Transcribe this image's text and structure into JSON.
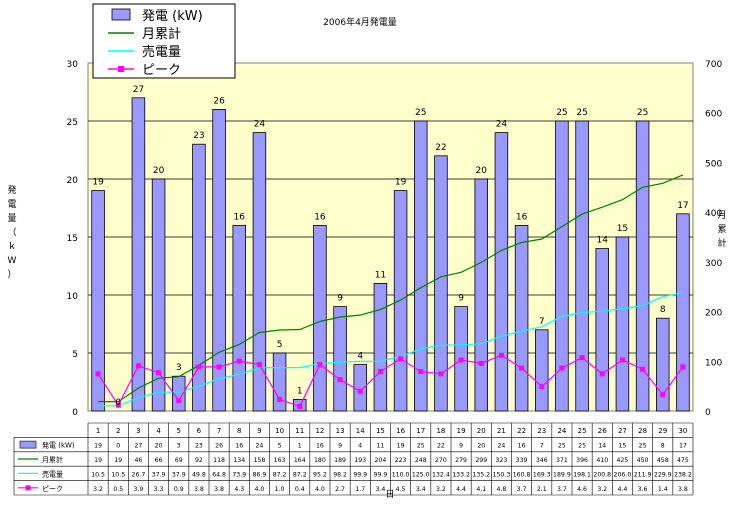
{
  "chart_data": {
    "type": "bar",
    "title": "2006年4月発電量",
    "xlabel": "日",
    "ylabel": "発電量（ｋW）",
    "y2label": "月累計",
    "ylim": [
      0,
      30
    ],
    "y2lim": [
      0,
      700
    ],
    "yticks": [
      "0",
      "5",
      "10",
      "15",
      "20",
      "25",
      "30"
    ],
    "y2ticks": [
      "0",
      "100",
      "200",
      "300",
      "400",
      "500",
      "600",
      "700"
    ],
    "grid": true,
    "legend_position": "top-left",
    "categories": [
      "1",
      "2",
      "3",
      "4",
      "5",
      "6",
      "7",
      "8",
      "9",
      "10",
      "11",
      "12",
      "13",
      "14",
      "15",
      "16",
      "17",
      "18",
      "19",
      "20",
      "21",
      "22",
      "23",
      "24",
      "25",
      "26",
      "27",
      "28",
      "29",
      "30"
    ],
    "series": [
      {
        "name": "発電 (kW)",
        "kind": "bar",
        "axis": "left",
        "color": "#9999ff",
        "values": [
          19,
          0,
          27,
          20,
          3,
          23,
          26,
          16,
          24,
          5,
          1,
          16,
          9,
          4,
          11,
          19,
          25,
          22,
          9,
          20,
          24,
          16,
          7,
          25,
          25,
          14,
          15,
          25,
          8,
          17
        ]
      },
      {
        "name": "月累計",
        "kind": "line",
        "axis": "right",
        "color": "#008000",
        "values": [
          19,
          19,
          46,
          66,
          69,
          92,
          118,
          134,
          158,
          163,
          164,
          180,
          189,
          193,
          204,
          223,
          248,
          270,
          279,
          299,
          323,
          339,
          346,
          371,
          396,
          410,
          425,
          450,
          458,
          475
        ]
      },
      {
        "name": "売電量",
        "kind": "line",
        "axis": "right",
        "color": "#00ffff",
        "values": [
          10.5,
          10.5,
          26.7,
          37.9,
          37.9,
          49.8,
          64.8,
          73.9,
          86.9,
          87.2,
          87.2,
          95.2,
          98.2,
          99.9,
          99.9,
          110.0,
          125.0,
          132.4,
          133.2,
          135.2,
          150.3,
          160.8,
          169.3,
          189.9,
          198.1,
          200.8,
          206.0,
          211.9,
          229.9,
          238.2
        ]
      },
      {
        "name": "ピーク",
        "kind": "line",
        "axis": "left",
        "color": "#ff00ff",
        "values": [
          3.2,
          0.5,
          3.9,
          3.3,
          0.9,
          3.8,
          3.8,
          4.3,
          4.0,
          1.0,
          0.4,
          4.0,
          2.7,
          1.7,
          3.4,
          4.5,
          3.4,
          3.2,
          4.4,
          4.1,
          4.8,
          3.7,
          2.1,
          3.7,
          4.6,
          3.2,
          4.4,
          3.6,
          1.4,
          3.8
        ]
      }
    ],
    "table_rows": [
      [
        "19",
        "0",
        "27",
        "20",
        "3",
        "23",
        "26",
        "16",
        "24",
        "5",
        "1",
        "16",
        "9",
        "4",
        "11",
        "19",
        "25",
        "22",
        "9",
        "20",
        "24",
        "16",
        "7",
        "25",
        "25",
        "14",
        "15",
        "25",
        "8",
        "17"
      ],
      [
        "19",
        "19",
        "46",
        "66",
        "69",
        "92",
        "118",
        "134",
        "158",
        "163",
        "164",
        "180",
        "189",
        "193",
        "204",
        "223",
        "248",
        "270",
        "279",
        "299",
        "323",
        "339",
        "346",
        "371",
        "396",
        "410",
        "425",
        "450",
        "458",
        "475"
      ],
      [
        "10.5",
        "10.5",
        "26.7",
        "37.9",
        "37.9",
        "49.8",
        "64.8",
        "73.9",
        "86.9",
        "87.2",
        "87.2",
        "95.2",
        "98.2",
        "99.9",
        "99.9",
        "110.0",
        "125.0",
        "132.4",
        "133.2",
        "135.2",
        "150.3",
        "160.8",
        "169.3",
        "189.9",
        "198.1",
        "200.8",
        "206.0",
        "211.9",
        "229.9",
        "238.2"
      ],
      [
        "3.2",
        "0.5",
        "3.9",
        "3.3",
        "0.9",
        "3.8",
        "3.8",
        "4.3",
        "4.0",
        "1.0",
        "0.4",
        "4.0",
        "2.7",
        "1.7",
        "3.4",
        "4.5",
        "3.4",
        "3.2",
        "4.4",
        "4.1",
        "4.8",
        "3.7",
        "2.1",
        "3.7",
        "4.6",
        "3.2",
        "4.4",
        "3.6",
        "1.4",
        "3.8"
      ]
    ]
  }
}
